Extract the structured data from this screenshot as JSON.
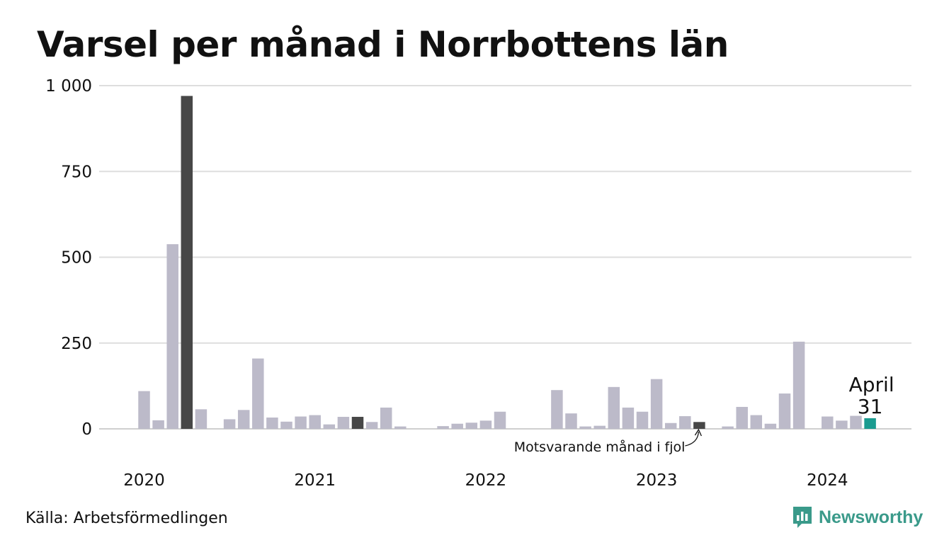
{
  "chart_data": {
    "type": "bar",
    "title": "Varsel per månad i Norrbottens län",
    "xlabel": "",
    "ylabel": "",
    "ylim": [
      0,
      1000
    ],
    "yticks": [
      0,
      250,
      500,
      750,
      1000
    ],
    "ytick_labels": [
      "0",
      "250",
      "500",
      "750",
      "1 000"
    ],
    "year_labels": [
      "2020",
      "2021",
      "2022",
      "2023",
      "2024"
    ],
    "grid": "horizontal",
    "series": [
      {
        "values": [
          110,
          25,
          538,
          970,
          57,
          0,
          28,
          55,
          205,
          33,
          21,
          36,
          40,
          13,
          35,
          35,
          20,
          62,
          7,
          0,
          0,
          8,
          15,
          18,
          24,
          50,
          0,
          0,
          0,
          113,
          45,
          7,
          9,
          122,
          62,
          50,
          145,
          17,
          37,
          20,
          0,
          7,
          64,
          40,
          15,
          103,
          254,
          0,
          36,
          24,
          38,
          31
        ],
        "colors": {
          "default": "#bcbac9",
          "highlight": "#474747",
          "current": "#1b9b90"
        }
      }
    ],
    "highlight_indices": [
      3,
      15,
      39
    ],
    "current_index": 51,
    "annotation_previous": "Motsvarande månad i fjol",
    "callout": {
      "month": "April",
      "value": "31"
    }
  },
  "footer": {
    "source": "Källa: Arbetsförmedlingen",
    "brand": "Newsworthy"
  }
}
